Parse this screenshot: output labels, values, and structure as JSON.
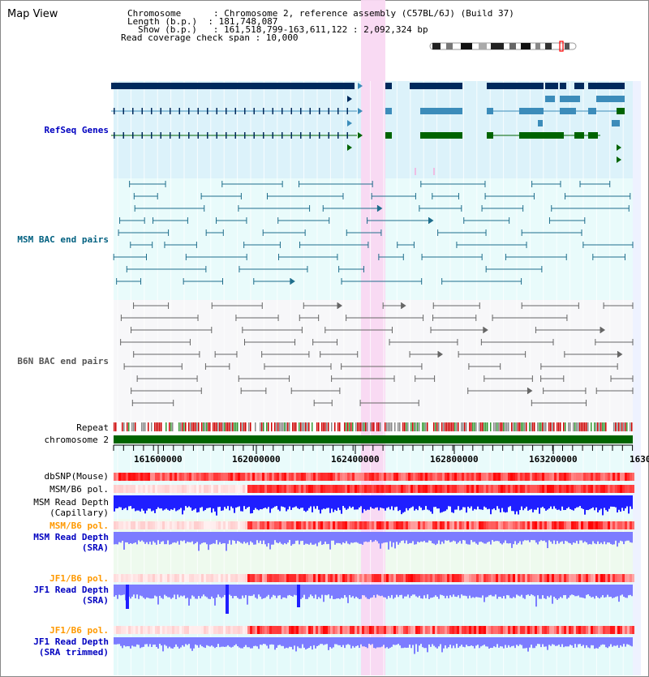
{
  "header": {
    "title": "Map View",
    "info_lines": [
      "Chromosome      : Chromosome 2, reference assembly (C57BL/6J) (Build 37)",
      "Length (b.p.)  : 181,748,087",
      "Show (b.p.)   : 161,518,799-163,611,122 : 2,092,324 bp",
      "Read coverage check span : 10,000"
    ]
  },
  "tracks": {
    "refseq": "RefSeq Genes",
    "msm_bac": "MSM BAC end pairs",
    "b6n_bac": "B6N BAC end pairs",
    "repeat": "Repeat",
    "chromosome": "chromosome 2",
    "dbsnp": "dbSNP(Mouse)",
    "msm_b6_pol_cap": "MSM/B6 pol.",
    "msm_depth_cap_1": "MSM Read Depth",
    "msm_depth_cap_2": "(Capillary)",
    "msm_b6_pol_sra": "MSM/B6 pol.",
    "msm_depth_sra_1": "MSM Read Depth",
    "msm_depth_sra_2": "(SRA)",
    "jf1_b6_pol_sra": "JF1/B6 pol.",
    "jf1_depth_sra_1": "JF1 Read Depth",
    "jf1_depth_sra_2": "(SRA)",
    "jf1_b6_pol_trim": "JF1/B6 pol.",
    "jf1_depth_trim_1": "JF1 Read Depth",
    "jf1_depth_trim_2": "(SRA trimmed)"
  },
  "axis": {
    "ticks": [
      "161600000",
      "162000000",
      "162400000",
      "162800000",
      "163200000",
      "1630"
    ]
  },
  "colors": {
    "refseq_dark": "#002a5c",
    "refseq_mid": "#3c8cba",
    "refseq_green": "#006400",
    "msm_bac": "#1f6e8c",
    "b6n_bac": "#666666",
    "highlight": "#f9d8f2",
    "depth_blue": "#1f1fff",
    "depth_light": "#7c7cff",
    "pol_red": "#ff0000",
    "label_blue": "#0000c0",
    "label_orange": "#ff9900",
    "label_teal": "#006080"
  }
}
